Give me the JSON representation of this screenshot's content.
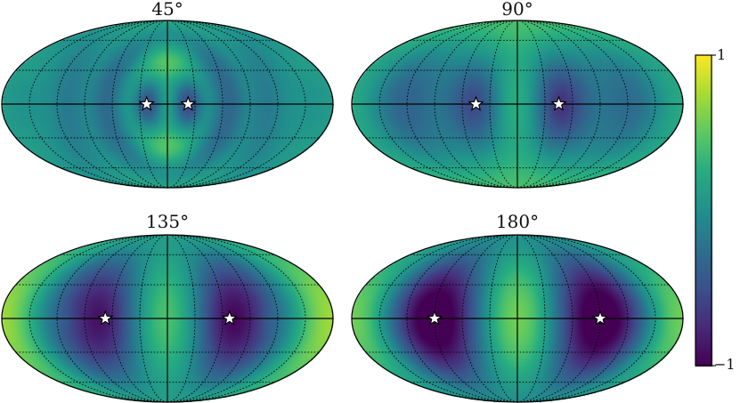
{
  "chart_data": {
    "type": "heatmap",
    "projection": "mollweide",
    "colormap": "viridis",
    "grid": true,
    "panels": [
      {
        "title": "45°",
        "angle_deg": 45,
        "star_longitudes_deg": [
          -22.5,
          22.5
        ]
      },
      {
        "title": "90°",
        "angle_deg": 90,
        "star_longitudes_deg": [
          -45,
          45
        ]
      },
      {
        "title": "135°",
        "angle_deg": 135,
        "star_longitudes_deg": [
          -67.5,
          67.5
        ]
      },
      {
        "title": "180°",
        "angle_deg": 180,
        "star_longitudes_deg": [
          -90,
          90
        ]
      }
    ],
    "colorbar": {
      "range": [
        -1,
        1
      ],
      "tick_labels": [
        "1",
        "−1"
      ],
      "placement": "right"
    }
  }
}
